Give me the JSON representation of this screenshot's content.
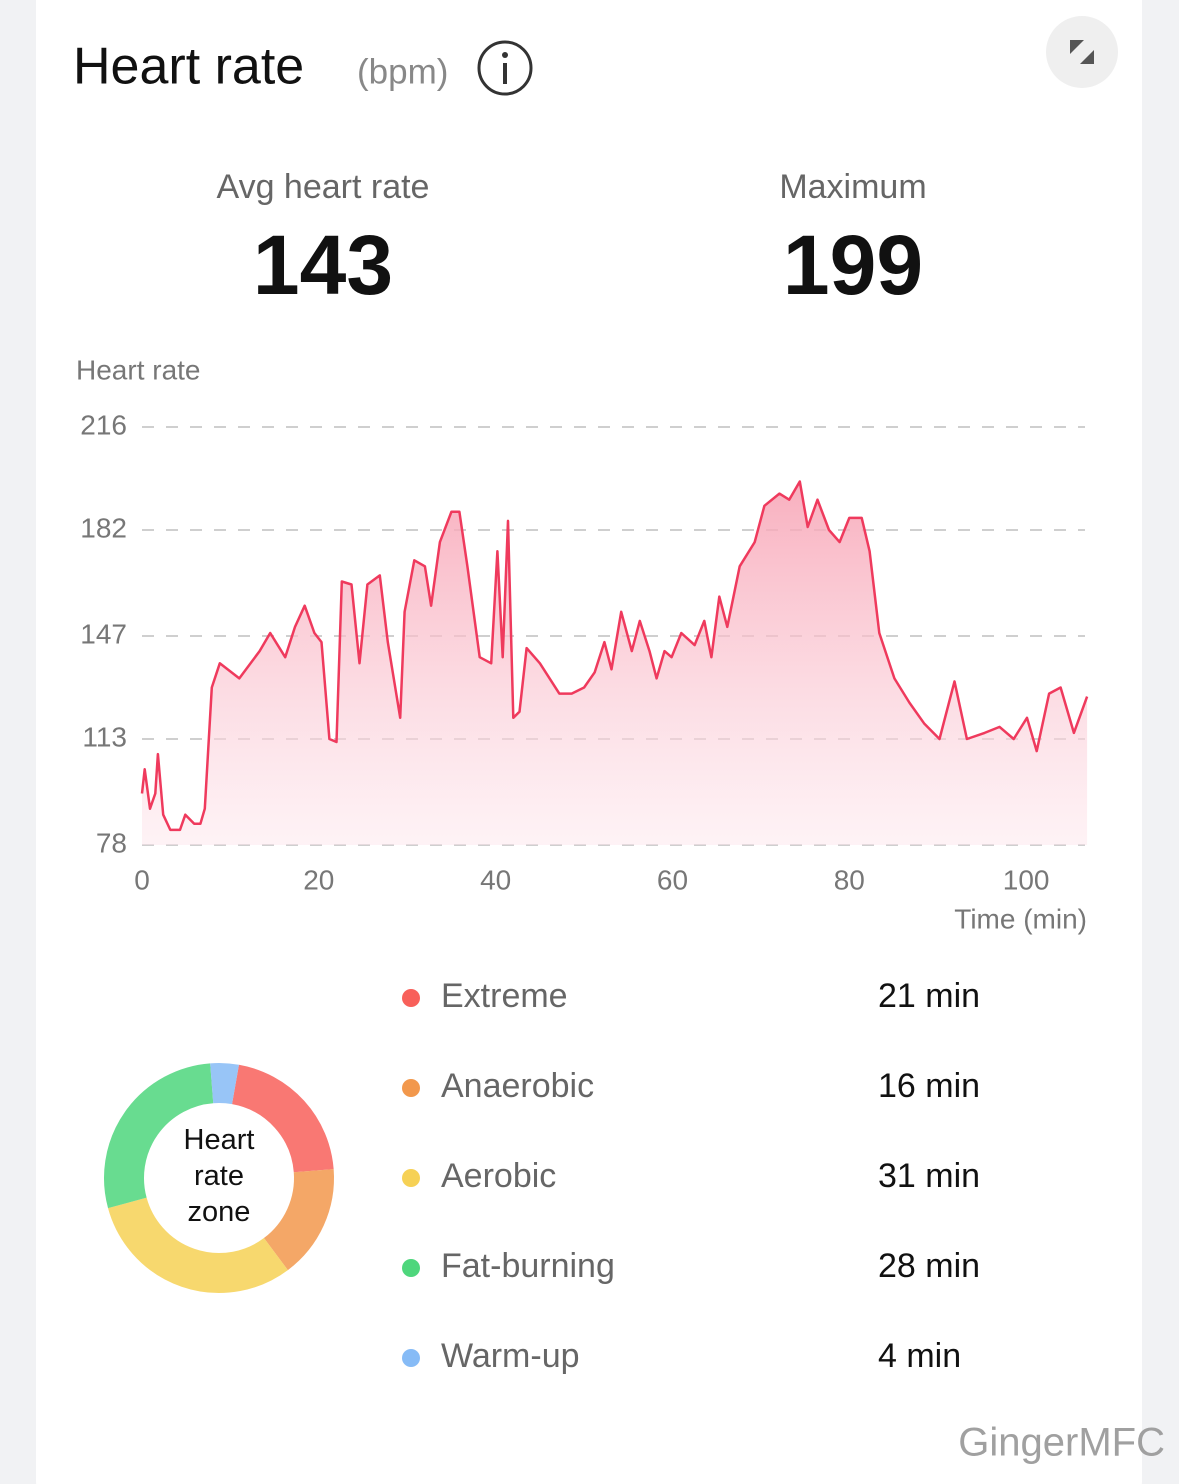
{
  "header": {
    "title": "Heart rate",
    "unit": "(bpm)"
  },
  "stats": [
    {
      "label": "Avg heart rate",
      "value": 143
    },
    {
      "label": "Maximum",
      "value": 199
    }
  ],
  "chart_data": {
    "type": "line",
    "y_label": "Heart rate",
    "x_label": "Time (min)",
    "color": "#ef3a5d",
    "grid": true,
    "x": [
      0,
      0.3,
      0.9,
      1.5,
      1.8,
      2.4,
      3.2,
      4.3,
      4.9,
      5.9,
      6.6,
      7.1,
      7.9,
      8.8,
      11,
      13.3,
      14.5,
      16.2,
      17.3,
      18.4,
      19.5,
      20.3,
      21.2,
      22,
      22.6,
      23.7,
      24.6,
      25.5,
      26.9,
      27.8,
      29.2,
      29.7,
      30.8,
      32,
      32.7,
      33.7,
      35,
      35.9,
      36.8,
      38.2,
      39.5,
      40.2,
      40.8,
      41.4,
      42,
      42.7,
      43.5,
      45,
      46.1,
      47.2,
      48.6,
      50,
      51.2,
      52.3,
      53.1,
      54.2,
      55.4,
      56.3,
      57.4,
      58.2,
      59.1,
      59.9,
      61,
      62.5,
      63.6,
      64.4,
      65.3,
      66.2,
      67.6,
      69.3,
      70.4,
      72.1,
      73.2,
      74.4,
      75.3,
      76.4,
      77.7,
      78.9,
      80,
      81.4,
      82.3,
      83.4,
      85.1,
      86.8,
      88.5,
      90.2,
      91.9,
      93.3,
      95.3,
      97,
      98.6,
      100.1,
      101.2,
      102.6,
      103.9,
      105.4,
      106.9
    ],
    "values": [
      95,
      103,
      90,
      95,
      108,
      88,
      83,
      83,
      88,
      85,
      85,
      90,
      130,
      138,
      133,
      142,
      148,
      140,
      150,
      157,
      148,
      145,
      113,
      112,
      165,
      164,
      138,
      164,
      167,
      145,
      120,
      155,
      172,
      170,
      157,
      178,
      188,
      188,
      170,
      140,
      138,
      175,
      140,
      185,
      120,
      122,
      143,
      138,
      133,
      128,
      128,
      130,
      135,
      145,
      136,
      155,
      142,
      152,
      142,
      133,
      142,
      140,
      148,
      144,
      152,
      140,
      160,
      150,
      170,
      178,
      190,
      194,
      192,
      198,
      183,
      192,
      182,
      178,
      186,
      186,
      175,
      148,
      133,
      125,
      118,
      113,
      132,
      113,
      115,
      117,
      113,
      120,
      109,
      128,
      130,
      115,
      127
    ],
    "xlim": [
      0,
      107
    ],
    "ylim": [
      78,
      216
    ],
    "xticks": [
      0,
      20,
      40,
      60,
      80,
      100
    ],
    "yticks": [
      78,
      113,
      147,
      182,
      216
    ]
  },
  "zones": {
    "center_label": "Heart rate zone",
    "names": [
      "Extreme",
      "Anaerobic",
      "Aerobic",
      "Fat-burning",
      "Warm-up"
    ],
    "values": [
      21,
      16,
      31,
      28,
      4
    ],
    "value_labels": [
      "21 min",
      "16 min",
      "31 min",
      "28 min",
      "4 min"
    ],
    "colors": [
      "#f8605a",
      "#f2984c",
      "#f6d155",
      "#4ed67c",
      "#86bbf6"
    ]
  },
  "watermark": "GingerMFC"
}
